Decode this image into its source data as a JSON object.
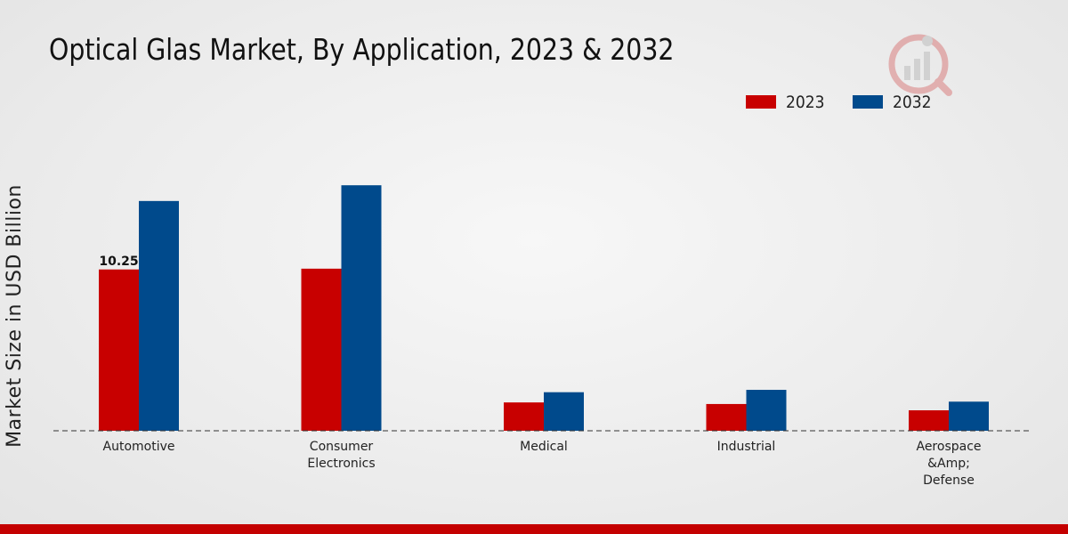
{
  "chart_data": {
    "type": "bar",
    "title": "Optical Glas Market, By Application, 2023 & 2032",
    "xlabel": "",
    "ylabel": "Market Size in USD Billion",
    "categories": [
      [
        "Automotive"
      ],
      [
        "Consumer",
        "Electronics"
      ],
      [
        "Medical"
      ],
      [
        "Industrial"
      ],
      [
        "Aerospace",
        "&Amp;",
        "Defense"
      ]
    ],
    "series": [
      {
        "name": "2023",
        "color": "#c80000",
        "values": [
          10.25,
          10.3,
          1.8,
          1.7,
          1.3
        ]
      },
      {
        "name": "2032",
        "color": "#004a8c",
        "values": [
          14.6,
          15.6,
          2.45,
          2.6,
          1.85
        ]
      }
    ],
    "data_labels": [
      {
        "series": 0,
        "index": 0,
        "text": "10.25"
      }
    ],
    "ylim": [
      0,
      22
    ],
    "grid": false,
    "legend_position": "top-right"
  }
}
